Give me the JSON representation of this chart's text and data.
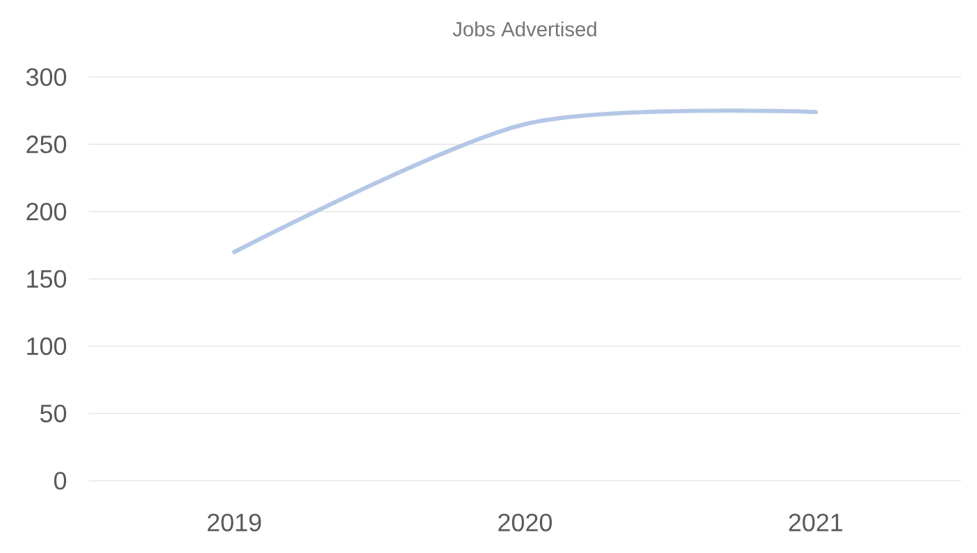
{
  "chart_data": {
    "type": "line",
    "title": "Jobs Advertised",
    "categories": [
      "2019",
      "2020",
      "2021"
    ],
    "series": [
      {
        "color": "#b4c7e7",
        "values": [
          170,
          265,
          274
        ]
      }
    ],
    "ylim": [
      0,
      300
    ],
    "yticks": [
      0,
      50,
      100,
      150,
      200,
      250,
      300
    ],
    "grid": "y"
  }
}
